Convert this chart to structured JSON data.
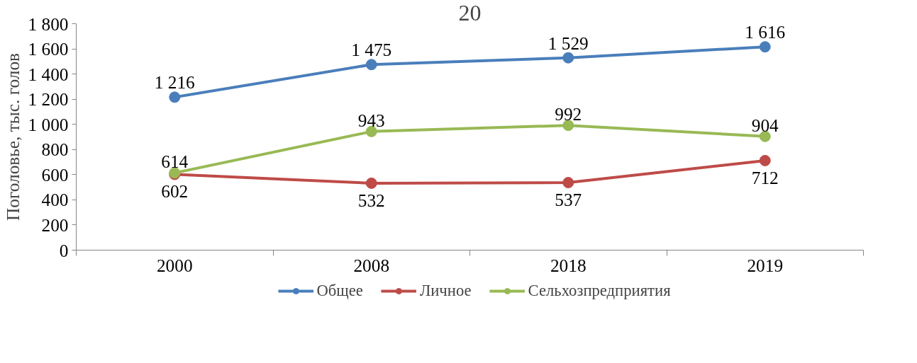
{
  "chart_data": {
    "type": "line",
    "title": "20",
    "ylabel": "Поголовье, тыс. голов",
    "categories": [
      "2000",
      "2008",
      "2018",
      "2019"
    ],
    "series": [
      {
        "name": "Общее",
        "color": "#4a7ebb",
        "values": [
          1216,
          1475,
          1529,
          1616
        ],
        "value_labels": [
          "1 216",
          "1 475",
          "1 529",
          "1 616"
        ]
      },
      {
        "name": "Личное",
        "color": "#be4b48",
        "values": [
          602,
          532,
          537,
          712
        ],
        "value_labels": [
          "602",
          "532",
          "537",
          "712"
        ]
      },
      {
        "name": "Сельхозпредприятия",
        "color": "#98b954",
        "values": [
          614,
          943,
          992,
          904
        ],
        "value_labels": [
          "614",
          "943",
          "992",
          "904"
        ]
      }
    ],
    "ylim": [
      0,
      1800
    ],
    "yticks": [
      0,
      200,
      400,
      600,
      800,
      {
        "value": 1000,
        "label": "1 000"
      },
      {
        "value": 1200,
        "label": "1 200"
      },
      {
        "value": 1400,
        "label": "1 400"
      },
      {
        "value": 1600,
        "label": "1 600"
      },
      {
        "value": 1800,
        "label": "1 800"
      }
    ],
    "marker": "circle",
    "grid": false,
    "legend": "bottom"
  }
}
